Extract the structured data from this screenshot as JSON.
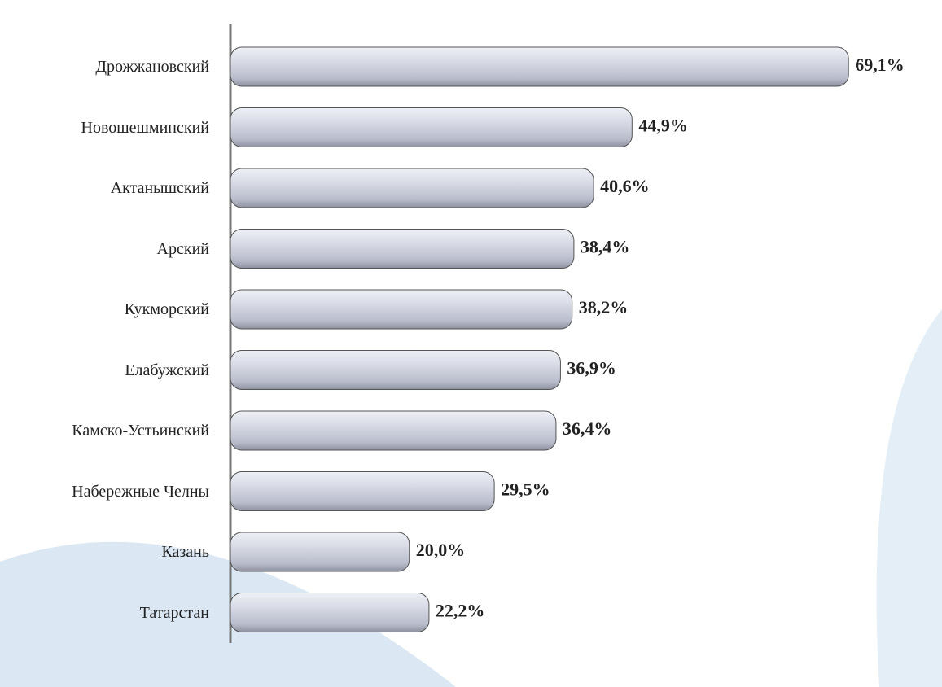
{
  "chart_data": {
    "type": "bar",
    "orientation": "horizontal",
    "categories": [
      "Дрожжановский",
      "Новошешминский",
      "Актанышский",
      "Арский",
      "Кукморский",
      "Елабужский",
      "Камско-Устьинский",
      "Набережные Челны",
      "Казань",
      "Татарстан"
    ],
    "values": [
      69.1,
      44.9,
      40.6,
      38.4,
      38.2,
      36.9,
      36.4,
      29.5,
      20.0,
      22.2
    ],
    "value_labels": [
      "69,1%",
      "44,9%",
      "40,6%",
      "38,4%",
      "38,2%",
      "36,9%",
      "36,4%",
      "29,5%",
      "20,0%",
      "22,2%"
    ],
    "color": "#c9ccd8",
    "xlim": [
      0,
      78
    ]
  }
}
